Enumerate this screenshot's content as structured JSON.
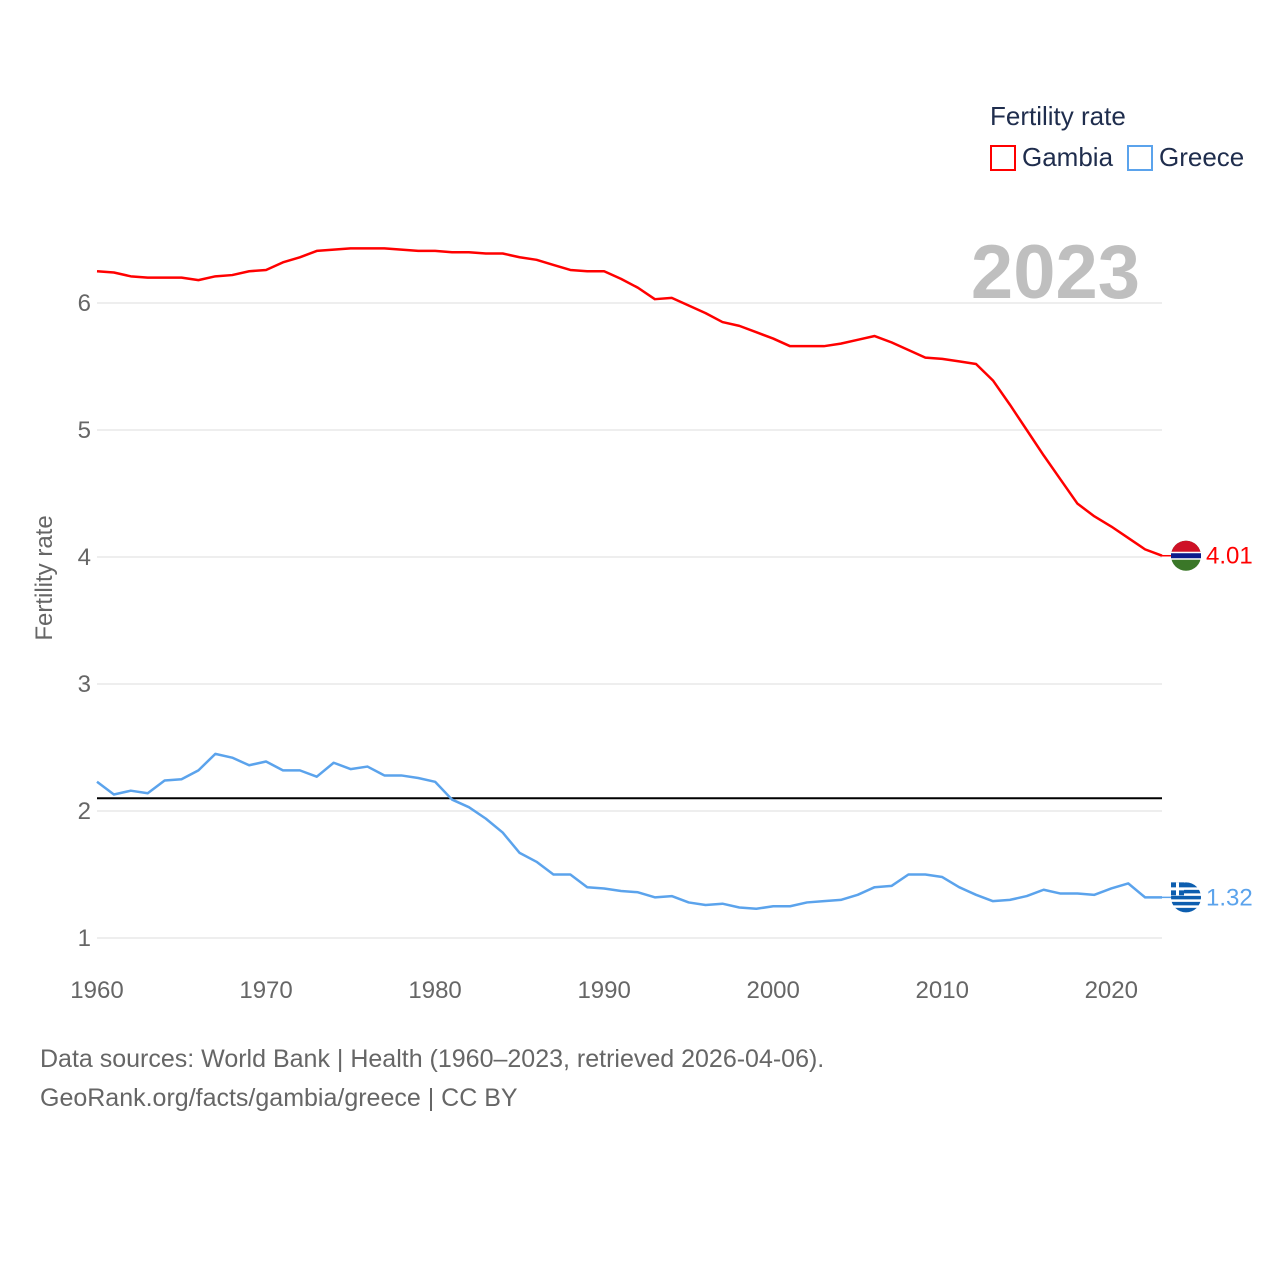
{
  "chart_data": {
    "type": "line",
    "year_label": "2023",
    "ylabel": "Fertility rate",
    "xlabel": "",
    "xlim": [
      1960,
      2023
    ],
    "ylim": [
      0.7,
      6.9
    ],
    "x_ticks": [
      1960,
      1970,
      1980,
      1990,
      2000,
      2010,
      2020
    ],
    "y_ticks": [
      1,
      2,
      3,
      4,
      5,
      6
    ],
    "grid": true,
    "legend": {
      "title": "Fertility rate",
      "placement": "top-right"
    },
    "reference_line": {
      "value": 2.1,
      "color": "#000000"
    },
    "x": [
      1960,
      1961,
      1962,
      1963,
      1964,
      1965,
      1966,
      1967,
      1968,
      1969,
      1970,
      1971,
      1972,
      1973,
      1974,
      1975,
      1976,
      1977,
      1978,
      1979,
      1980,
      1981,
      1982,
      1983,
      1984,
      1985,
      1986,
      1987,
      1988,
      1989,
      1990,
      1991,
      1992,
      1993,
      1994,
      1995,
      1996,
      1997,
      1998,
      1999,
      2000,
      2001,
      2002,
      2003,
      2004,
      2005,
      2006,
      2007,
      2008,
      2009,
      2010,
      2011,
      2012,
      2013,
      2014,
      2015,
      2016,
      2017,
      2018,
      2019,
      2020,
      2021,
      2022,
      2023
    ],
    "series": [
      {
        "name": "Gambia",
        "color": "#ff0000",
        "end_label": "4.01",
        "values": [
          6.25,
          6.24,
          6.21,
          6.2,
          6.2,
          6.2,
          6.18,
          6.21,
          6.22,
          6.25,
          6.26,
          6.32,
          6.36,
          6.41,
          6.42,
          6.43,
          6.43,
          6.43,
          6.42,
          6.41,
          6.41,
          6.4,
          6.4,
          6.39,
          6.39,
          6.36,
          6.34,
          6.3,
          6.26,
          6.25,
          6.25,
          6.19,
          6.12,
          6.03,
          6.04,
          5.98,
          5.92,
          5.85,
          5.82,
          5.77,
          5.72,
          5.66,
          5.66,
          5.66,
          5.68,
          5.71,
          5.74,
          5.69,
          5.63,
          5.57,
          5.56,
          5.54,
          5.52,
          5.39,
          5.2,
          5.0,
          4.8,
          4.61,
          4.42,
          4.32,
          4.24,
          4.15,
          4.06,
          4.01
        ]
      },
      {
        "name": "Greece",
        "color": "#5ba3ec",
        "end_label": "1.32",
        "values": [
          2.23,
          2.13,
          2.16,
          2.14,
          2.24,
          2.25,
          2.32,
          2.45,
          2.42,
          2.36,
          2.39,
          2.32,
          2.32,
          2.27,
          2.38,
          2.33,
          2.35,
          2.28,
          2.28,
          2.26,
          2.23,
          2.09,
          2.03,
          1.94,
          1.83,
          1.67,
          1.6,
          1.5,
          1.5,
          1.4,
          1.39,
          1.37,
          1.36,
          1.32,
          1.33,
          1.28,
          1.26,
          1.27,
          1.24,
          1.23,
          1.25,
          1.25,
          1.28,
          1.29,
          1.3,
          1.34,
          1.4,
          1.41,
          1.5,
          1.5,
          1.48,
          1.4,
          1.34,
          1.29,
          1.3,
          1.33,
          1.38,
          1.35,
          1.35,
          1.34,
          1.39,
          1.43,
          1.32,
          1.32
        ]
      }
    ]
  },
  "footer": {
    "sources": "Data sources: World Bank | Health (1960–2023, retrieved 2026-04-06).",
    "attribution": "GeoRank.org/facts/gambia/greece | CC BY"
  }
}
